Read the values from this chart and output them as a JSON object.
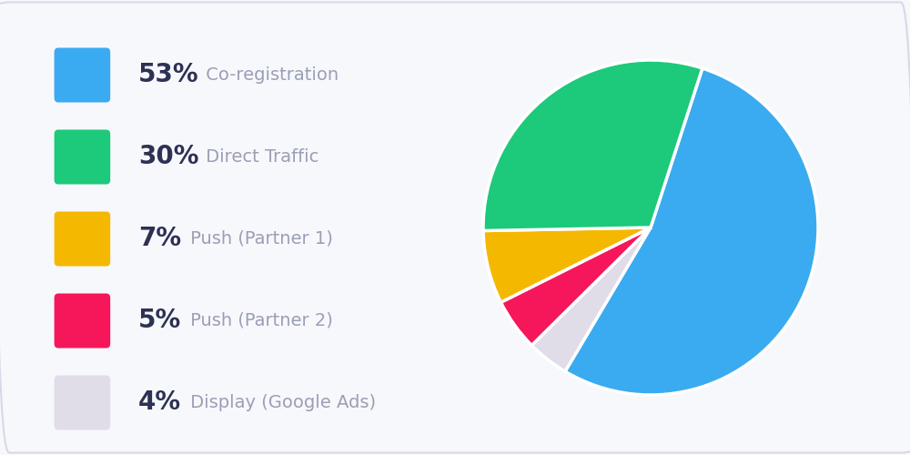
{
  "slices": [
    53,
    4,
    5,
    7,
    30
  ],
  "colors": [
    "#3AABF0",
    "#E0DDE8",
    "#F5175A",
    "#F5B800",
    "#1DC97A"
  ],
  "legend_order": [
    0,
    4,
    3,
    2,
    1
  ],
  "legend_labels": [
    "Co-registration",
    "Direct Traffic",
    "Push (Partner 1)",
    "Push (Partner 2)",
    "Display (Google Ads)"
  ],
  "legend_percentages": [
    "53%",
    "30%",
    "7%",
    "5%",
    "4%"
  ],
  "legend_colors": [
    "#3AABF0",
    "#1DC97A",
    "#F5B800",
    "#F5175A",
    "#E0DDE8"
  ],
  "background_color": "#F7F8FC",
  "text_dark": "#2D3153",
  "text_gray": "#9A9FB5",
  "pct_fontsize": 20,
  "label_fontsize": 14,
  "startangle": 72
}
